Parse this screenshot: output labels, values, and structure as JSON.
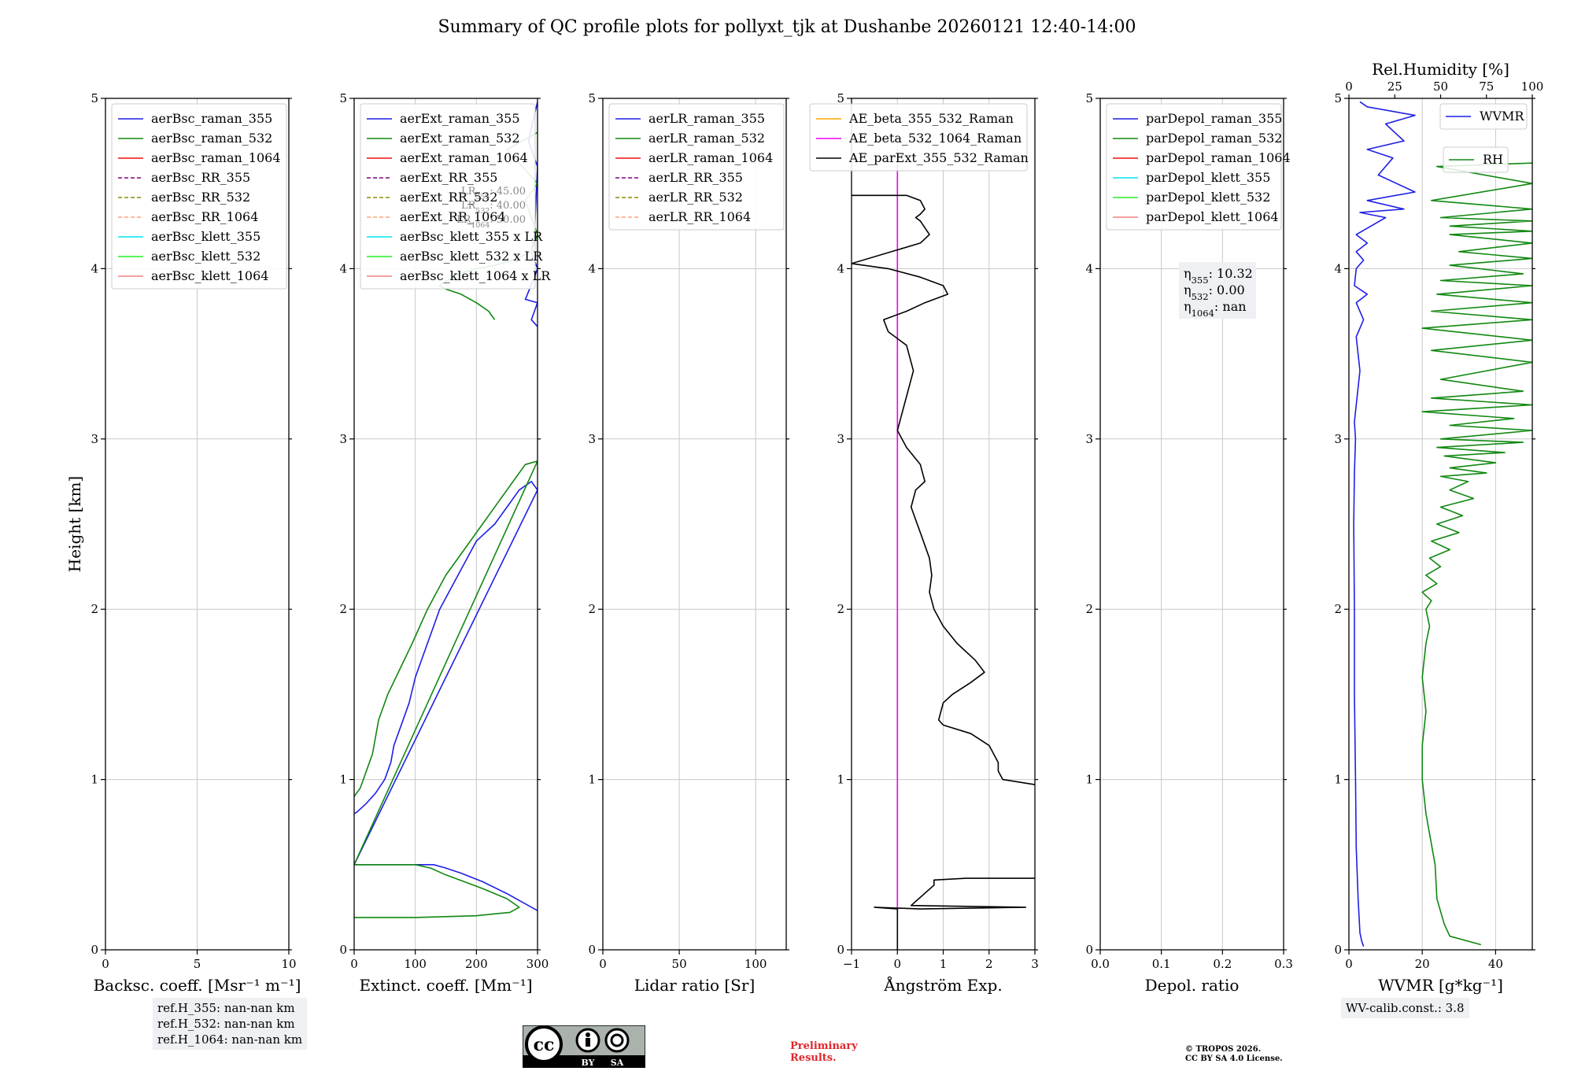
{
  "title": "Summary of QC profile plots for pollyxt_tjk at Dushanbe 20260121 12:40-14:00",
  "y_label": "Height [km]",
  "colors": {
    "blue": "#1f1fe6",
    "green": "#118811",
    "red": "#ee1111",
    "purple": "#800080",
    "olive": "#8b8b00",
    "salmon": "#ffa07a",
    "cyan": "#00e5ee",
    "lime": "#22ee22",
    "lightcoral": "#f08080",
    "orange": "#ffa500",
    "magenta": "#ee00ee",
    "black": "#000000",
    "grid": "#c8c8c8"
  },
  "chart_data": [
    {
      "type": "line",
      "id": "bsc",
      "xlabel": "Backsc. coeff. [Msr⁻¹ m⁻¹]",
      "xlim": [
        0,
        10
      ],
      "ylim": [
        0,
        5
      ],
      "xticks": [
        0,
        5,
        10
      ],
      "yticks": [
        0,
        1,
        2,
        3,
        4,
        5
      ],
      "legend": [
        {
          "label": "aerBsc_raman_355",
          "color": "#1f1fe6",
          "dash": false
        },
        {
          "label": "aerBsc_raman_532",
          "color": "#118811",
          "dash": false
        },
        {
          "label": "aerBsc_raman_1064",
          "color": "#ee1111",
          "dash": false
        },
        {
          "label": "aerBsc_RR_355",
          "color": "#800080",
          "dash": true
        },
        {
          "label": "aerBsc_RR_532",
          "color": "#8b8b00",
          "dash": true
        },
        {
          "label": "aerBsc_RR_1064",
          "color": "#ffa07a",
          "dash": true
        },
        {
          "label": "aerBsc_klett_355",
          "color": "#00e5ee",
          "dash": false
        },
        {
          "label": "aerBsc_klett_532",
          "color": "#22ee22",
          "dash": false
        },
        {
          "label": "aerBsc_klett_1064",
          "color": "#f08080",
          "dash": false
        }
      ],
      "series": []
    },
    {
      "type": "line",
      "id": "ext",
      "xlabel": "Extinct. coeff. [Mm⁻¹]",
      "xlim": [
        0,
        300
      ],
      "ylim": [
        0,
        5
      ],
      "xticks": [
        0,
        100,
        200,
        300
      ],
      "yticks": [
        0,
        1,
        2,
        3,
        4,
        5
      ],
      "legend": [
        {
          "label": "aerExt_raman_355",
          "color": "#1f1fe6",
          "dash": false
        },
        {
          "label": "aerExt_raman_532",
          "color": "#118811",
          "dash": false
        },
        {
          "label": "aerExt_raman_1064",
          "color": "#ee1111",
          "dash": false
        },
        {
          "label": "aerExt_RR_355",
          "color": "#800080",
          "dash": true
        },
        {
          "label": "aerExt_RR_532",
          "color": "#8b8b00",
          "dash": true
        },
        {
          "label": "aerExt_RR_1064",
          "color": "#ffa07a",
          "dash": true
        },
        {
          "label": "aerBsc_klett_355 x LR",
          "color": "#00e5ee",
          "dash": false
        },
        {
          "label": "aerBsc_klett_532 x LR",
          "color": "#22ee22",
          "dash": false
        },
        {
          "label": "aerBsc_klett_1064 x LR",
          "color": "#f08080",
          "dash": false
        }
      ],
      "lr_note": [
        "LR355: 45.00",
        "LR532: 40.00",
        "LR1064: 50.00"
      ],
      "series": [
        {
          "name": "aerExt_raman_355",
          "color": "#1f1fe6",
          "x": [
            300,
            280,
            250,
            210,
            175,
            150,
            130,
            0,
            300,
            290,
            270,
            250,
            230,
            200,
            170,
            140,
            120,
            100,
            90,
            75,
            65,
            60,
            55,
            50,
            35,
            20,
            5,
            0
          ],
          "y": [
            0.23,
            0.27,
            0.33,
            0.4,
            0.45,
            0.48,
            0.5,
            0.5,
            2.7,
            2.75,
            2.7,
            2.6,
            2.5,
            2.4,
            2.2,
            2.0,
            1.8,
            1.6,
            1.45,
            1.3,
            1.2,
            1.1,
            1.05,
            1.0,
            0.92,
            0.86,
            0.81,
            0.8
          ]
        },
        {
          "name": "aerExt_raman_532",
          "color": "#118811",
          "x": [
            0,
            100,
            200,
            255,
            270,
            250,
            210,
            180,
            150,
            125,
            100,
            0,
            300,
            280,
            260,
            240,
            210,
            180,
            150,
            120,
            95,
            75,
            55,
            40,
            35,
            30,
            20,
            10,
            0
          ],
          "y": [
            0.19,
            0.19,
            0.2,
            0.22,
            0.25,
            0.3,
            0.36,
            0.4,
            0.44,
            0.48,
            0.5,
            0.5,
            2.87,
            2.85,
            2.75,
            2.65,
            2.5,
            2.35,
            2.2,
            2.0,
            1.8,
            1.65,
            1.5,
            1.35,
            1.25,
            1.15,
            1.05,
            0.95,
            0.9
          ]
        },
        {
          "name": "aerExt_raman_355_upper",
          "color": "#1f1fe6",
          "x": [
            300,
            290,
            295,
            300,
            280,
            295,
            300,
            290,
            295,
            300,
            285,
            300
          ],
          "y": [
            3.66,
            3.7,
            3.75,
            3.8,
            3.82,
            3.95,
            4.0,
            4.1,
            4.2,
            4.6,
            4.75,
            4.98
          ]
        },
        {
          "name": "aerExt_raman_532_upper",
          "color": "#118811",
          "x": [
            230,
            220,
            200,
            175,
            150,
            140,
            160,
            180,
            200,
            230,
            260,
            290,
            300,
            280,
            300,
            250,
            300
          ],
          "y": [
            3.7,
            3.75,
            3.8,
            3.85,
            3.88,
            3.9,
            3.95,
            3.98,
            4.0,
            4.02,
            4.05,
            4.1,
            4.2,
            4.4,
            4.5,
            4.7,
            4.8
          ]
        }
      ]
    },
    {
      "type": "line",
      "id": "lr",
      "xlabel": "Lidar ratio [Sr]",
      "xlim": [
        0,
        120
      ],
      "ylim": [
        0,
        5
      ],
      "xticks": [
        0,
        50,
        100
      ],
      "yticks": [
        0,
        1,
        2,
        3,
        4,
        5
      ],
      "legend": [
        {
          "label": "aerLR_raman_355",
          "color": "#1f1fe6",
          "dash": false
        },
        {
          "label": "aerLR_raman_532",
          "color": "#118811",
          "dash": false
        },
        {
          "label": "aerLR_raman_1064",
          "color": "#ee1111",
          "dash": false
        },
        {
          "label": "aerLR_RR_355",
          "color": "#800080",
          "dash": true
        },
        {
          "label": "aerLR_RR_532",
          "color": "#8b8b00",
          "dash": true
        },
        {
          "label": "aerLR_RR_1064",
          "color": "#ffa07a",
          "dash": true
        }
      ],
      "series": []
    },
    {
      "type": "line",
      "id": "ae",
      "xlabel": "Ångström Exp.",
      "xlim": [
        -1,
        3
      ],
      "ylim": [
        0,
        5
      ],
      "xticks": [
        -1,
        0,
        1,
        2,
        3
      ],
      "yticks": [
        0,
        1,
        2,
        3,
        4,
        5
      ],
      "legend": [
        {
          "label": "AE_beta_355_532_Raman",
          "color": "#ffa500",
          "dash": false
        },
        {
          "label": "AE_beta_532_1064_Raman",
          "color": "#ee00ee",
          "dash": false
        },
        {
          "label": "AE_parExt_355_532_Raman",
          "color": "#000000",
          "dash": false
        }
      ],
      "series": [
        {
          "name": "AE_beta_532_1064_Raman",
          "color": "#ee00ee",
          "x": [
            0,
            0
          ],
          "y": [
            0.23,
            4.7
          ]
        },
        {
          "name": "AE_parExt_355_532_Raman_low",
          "color": "#000000",
          "x": [
            0,
            0,
            -0.5,
            0.5,
            2.8,
            0.3,
            0.8,
            0.8,
            1.5,
            3.0
          ],
          "y": [
            0.0,
            0.24,
            0.25,
            0.24,
            0.25,
            0.26,
            0.38,
            0.41,
            0.42,
            0.42
          ]
        },
        {
          "name": "AE_parExt_355_532_Raman",
          "color": "#000000",
          "x": [
            3.0,
            2.3,
            2.2,
            2.2,
            2.0,
            1.6,
            1.0,
            0.9,
            0.95,
            1.0,
            1.2,
            1.6,
            1.9,
            1.7,
            1.3,
            1.0,
            0.8,
            0.7,
            0.75,
            0.7,
            0.5,
            0.3,
            0.4,
            0.6,
            0.5,
            0.2,
            0.0,
            0.15,
            0.35,
            0.2,
            -0.2,
            -0.3,
            0.2,
            0.6,
            1.1,
            1.0,
            0.5,
            -0.2,
            -1.0,
            0.5,
            0.7,
            0.5,
            0.4,
            0.5,
            0.6,
            0.5,
            0.2,
            -1.0
          ],
          "y": [
            0.97,
            1.0,
            1.05,
            1.1,
            1.2,
            1.27,
            1.32,
            1.35,
            1.4,
            1.45,
            1.5,
            1.57,
            1.63,
            1.7,
            1.8,
            1.9,
            2.0,
            2.1,
            2.2,
            2.3,
            2.45,
            2.6,
            2.7,
            2.75,
            2.85,
            2.95,
            3.05,
            3.2,
            3.4,
            3.55,
            3.63,
            3.7,
            3.75,
            3.8,
            3.85,
            3.9,
            3.95,
            4.0,
            4.03,
            4.15,
            4.2,
            4.28,
            4.3,
            4.32,
            4.35,
            4.4,
            4.43,
            4.43
          ]
        }
      ]
    },
    {
      "type": "line",
      "id": "dep",
      "xlabel": "Depol. ratio",
      "xlim": [
        0,
        0.3
      ],
      "ylim": [
        0,
        5
      ],
      "xticks": [
        0.0,
        0.1,
        0.2,
        0.3
      ],
      "yticks": [
        0,
        1,
        2,
        3,
        4,
        5
      ],
      "legend": [
        {
          "label": "parDepol_raman_355",
          "color": "#1f1fe6",
          "dash": false
        },
        {
          "label": "parDepol_raman_532",
          "color": "#118811",
          "dash": false
        },
        {
          "label": "parDepol_raman_1064",
          "color": "#ee1111",
          "dash": false
        },
        {
          "label": "parDepol_klett_355",
          "color": "#00e5ee",
          "dash": false
        },
        {
          "label": "parDepol_klett_532",
          "color": "#22ee22",
          "dash": false
        },
        {
          "label": "parDepol_klett_1064",
          "color": "#f08080",
          "dash": false
        }
      ],
      "eta": [
        "η355: 10.32",
        "η532: 0.00",
        "η1064: nan"
      ],
      "series": []
    },
    {
      "type": "line",
      "id": "wv",
      "xlabel": "WVMR [g*kg⁻¹]",
      "xlim": [
        0,
        50
      ],
      "ylim": [
        0,
        5
      ],
      "xticks": [
        0,
        20,
        40
      ],
      "yticks": [
        0,
        1,
        2,
        3,
        4,
        5
      ],
      "top_axis": {
        "label": "Rel.Humidity [%]",
        "xlim": [
          0,
          100
        ],
        "ticks": [
          0,
          25,
          50,
          75,
          100
        ]
      },
      "legend": [
        {
          "label": "WVMR",
          "color": "#1f1fe6",
          "dash": false
        },
        {
          "label": "RH",
          "color": "#118811",
          "dash": false
        }
      ],
      "series": [
        {
          "name": "WVMR",
          "color": "#1f1fe6",
          "axis": "bottom",
          "x": [
            4.0,
            3.5,
            3.0,
            2.5,
            2.0,
            1.8,
            1.5,
            1.5,
            1.3,
            1.5,
            1.8,
            1.5,
            2.0,
            3.0,
            2.0,
            4.0,
            2.0,
            5.0,
            1.5,
            2.0,
            4.0,
            2.0,
            5.0,
            2.0,
            6.0,
            10.0,
            3.0,
            15.0,
            5.0,
            18.0,
            8.0,
            12.0,
            5.0,
            15.0,
            10.0,
            18.0,
            5.0,
            3.0
          ],
          "y": [
            0.02,
            0.05,
            0.1,
            0.3,
            0.6,
            1.0,
            1.5,
            2.0,
            2.5,
            2.8,
            3.0,
            3.1,
            3.2,
            3.4,
            3.6,
            3.7,
            3.8,
            3.85,
            3.9,
            4.0,
            4.05,
            4.1,
            4.15,
            4.2,
            4.25,
            4.3,
            4.33,
            4.35,
            4.4,
            4.45,
            4.55,
            4.65,
            4.7,
            4.75,
            4.85,
            4.9,
            4.95,
            4.98
          ]
        },
        {
          "name": "RH",
          "color": "#118811",
          "axis": "top",
          "x": [
            72,
            55,
            52,
            48,
            47,
            42,
            40,
            40,
            42,
            40,
            42,
            44,
            42,
            45,
            40,
            48,
            42,
            50,
            44,
            55,
            45,
            60,
            48,
            62,
            50,
            68,
            55,
            65,
            50,
            75,
            55,
            80,
            52,
            85,
            48,
            95,
            50,
            100,
            55,
            90,
            40,
            100,
            45,
            95,
            50,
            100,
            45,
            100,
            40,
            100,
            45,
            100,
            48,
            100,
            50,
            95,
            55,
            100,
            60,
            100,
            55,
            100,
            55,
            100,
            50,
            100,
            45,
            100,
            48,
            100
          ],
          "y": [
            0.03,
            0.08,
            0.15,
            0.3,
            0.5,
            0.8,
            1.0,
            1.2,
            1.4,
            1.6,
            1.8,
            1.9,
            2.0,
            2.05,
            2.1,
            2.15,
            2.2,
            2.25,
            2.3,
            2.35,
            2.4,
            2.45,
            2.5,
            2.55,
            2.6,
            2.65,
            2.7,
            2.75,
            2.78,
            2.8,
            2.83,
            2.86,
            2.9,
            2.92,
            2.95,
            2.98,
            3.0,
            3.05,
            3.08,
            3.12,
            3.16,
            3.2,
            3.24,
            3.28,
            3.35,
            3.45,
            3.52,
            3.58,
            3.65,
            3.7,
            3.75,
            3.8,
            3.85,
            3.9,
            3.93,
            3.97,
            4.02,
            4.06,
            4.1,
            4.15,
            4.2,
            4.22,
            4.25,
            4.28,
            4.3,
            4.35,
            4.4,
            4.5,
            4.6,
            4.62
          ]
        }
      ]
    }
  ],
  "notes": {
    "ref_h": [
      "ref.H_355: nan-nan km",
      "ref.H_532: nan-nan km",
      "ref.H_1064: nan-nan km"
    ],
    "wv_calib": "WV-calib.const.: 3.8",
    "preliminary": [
      "Preliminary",
      "Results."
    ],
    "copyright": [
      "© TROPOS 2026.",
      "CC BY SA 4.0 License."
    ],
    "license_badge": {
      "cc": "cc",
      "by": "BY",
      "sa": "SA"
    }
  }
}
